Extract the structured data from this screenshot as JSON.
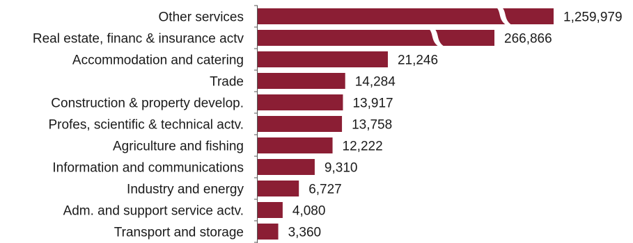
{
  "chart_data": {
    "type": "bar",
    "orientation": "horizontal",
    "axis_break": true,
    "categories": [
      "Other services",
      "Real estate, financ & insurance actv",
      "Accommodation and catering",
      "Trade",
      "Construction & property develop.",
      "Profes, scientific & technical actv.",
      "Agriculture and fishing",
      "Information and communications",
      "Industry and energy",
      "Adm. and support service actv.",
      "Transport and storage"
    ],
    "values": [
      1259979,
      266866,
      21246,
      14284,
      13917,
      13758,
      12222,
      9310,
      6727,
      4080,
      3360
    ],
    "value_labels": [
      "1,259,979",
      "266,866",
      "21,246",
      "14,284",
      "13,917",
      "13,758",
      "12,222",
      "9,310",
      "6,727",
      "4,080",
      "3,360"
    ],
    "bar_color": "#8b1e34"
  }
}
